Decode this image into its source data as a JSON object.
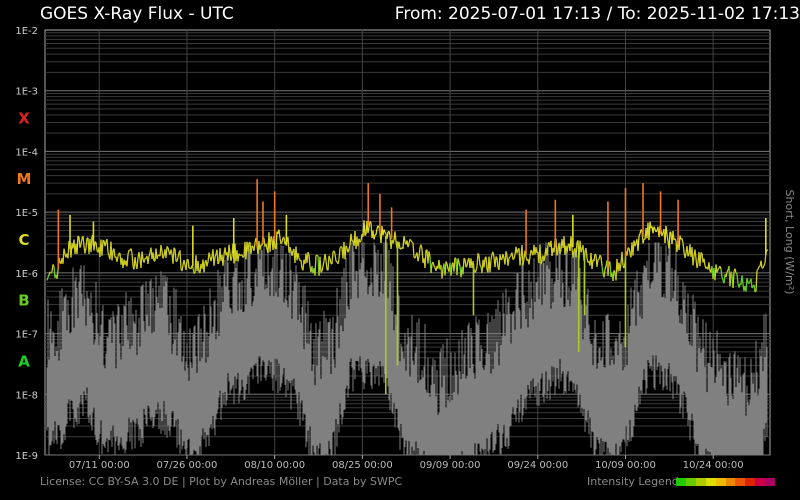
{
  "header": {
    "title": "GOES X-Ray Flux - UTC",
    "range": "From: 2025-07-01 17:13  /  To: 2025-11-02 17:13"
  },
  "footer": {
    "credits": "License: CC BY-SA 3.0 DE | Plot by Andreas Möller | Data by SWPC",
    "legend_label": "Intensity Legend",
    "legend_colors": [
      "#22cc00",
      "#66cc00",
      "#aacc00",
      "#dddd00",
      "#eebb00",
      "#ee8800",
      "#ee5500",
      "#dd2200",
      "#cc0044",
      "#aa0066"
    ]
  },
  "chart_data": {
    "type": "line",
    "title": "GOES X-Ray Flux - UTC",
    "ylabel": "Short, Long (W/m²)",
    "yscale": "log",
    "ylim": [
      1e-09,
      0.01
    ],
    "y_ticks": [
      "1E-9",
      "1E-8",
      "1E-7",
      "1E-6",
      "1E-5",
      "1E-4",
      "1E-3",
      "1E-2"
    ],
    "flare_classes": [
      {
        "label": "X",
        "color": "#dd2222",
        "level": 0.00035
      },
      {
        "label": "M",
        "color": "#ee7722",
        "level": 3.5e-05
      },
      {
        "label": "C",
        "color": "#dddd22",
        "level": 3.5e-06
      },
      {
        "label": "B",
        "color": "#66cc22",
        "level": 3.5e-07
      },
      {
        "label": "A",
        "color": "#22cc22",
        "level": 3.5e-08
      }
    ],
    "xlim": [
      "2025-07-01 17:13",
      "2025-11-02 17:13"
    ],
    "x_ticks": [
      "07/11 00:00",
      "07/26 00:00",
      "08/10 00:00",
      "08/25 00:00",
      "09/09 00:00",
      "09/24 00:00",
      "10/09 00:00",
      "10/24 00:00"
    ],
    "grid": true,
    "series": [
      {
        "name": "Long",
        "color": "colored by intensity",
        "x": [
          "07/01",
          "07/04",
          "07/06",
          "07/09",
          "07/12",
          "07/15",
          "07/18",
          "07/21",
          "07/24",
          "07/27",
          "07/30",
          "08/02",
          "08/05",
          "08/08",
          "08/11",
          "08/14",
          "08/17",
          "08/20",
          "08/23",
          "08/26",
          "08/29",
          "09/01",
          "09/04",
          "09/07",
          "09/10",
          "09/13",
          "09/16",
          "09/19",
          "09/22",
          "09/25",
          "09/28",
          "10/01",
          "10/04",
          "10/07",
          "10/10",
          "10/13",
          "10/16",
          "10/19",
          "10/22",
          "10/25",
          "10/28",
          "10/31",
          "11/02"
        ],
        "values": [
          8e-07,
          1.2e-06,
          2.5e-06,
          3e-06,
          2.5e-06,
          1.8e-06,
          1.6e-06,
          2e-06,
          1.8e-06,
          1.3e-06,
          1.6e-06,
          2e-06,
          2.2e-06,
          3e-06,
          3.5e-06,
          1.8e-06,
          1.3e-06,
          1.5e-06,
          3e-06,
          6e-06,
          4e-06,
          3e-06,
          2e-06,
          1.2e-06,
          1.2e-06,
          1.4e-06,
          1.5e-06,
          1.8e-06,
          2e-06,
          2e-06,
          3e-06,
          2.5e-06,
          1.5e-06,
          1e-06,
          2.5e-06,
          5e-06,
          4e-06,
          2.5e-06,
          1.5e-06,
          1e-06,
          8e-07,
          6e-07,
          2e-06
        ],
        "peaks": [
          {
            "x": "07/04",
            "value": 1.1e-05
          },
          {
            "x": "07/06",
            "value": 9e-06
          },
          {
            "x": "07/10",
            "value": 7e-06
          },
          {
            "x": "07/27",
            "value": 6e-06
          },
          {
            "x": "08/03",
            "value": 8e-06
          },
          {
            "x": "08/07",
            "value": 3.5e-05
          },
          {
            "x": "08/08",
            "value": 1.5e-05
          },
          {
            "x": "08/10",
            "value": 2.2e-05
          },
          {
            "x": "08/12",
            "value": 9e-06
          },
          {
            "x": "08/26",
            "value": 3e-05
          },
          {
            "x": "08/28",
            "value": 2e-05
          },
          {
            "x": "08/30",
            "value": 1.2e-05
          },
          {
            "x": "09/22",
            "value": 1.1e-05
          },
          {
            "x": "09/27",
            "value": 1.6e-05
          },
          {
            "x": "09/30",
            "value": 9e-06
          },
          {
            "x": "10/06",
            "value": 1.5e-05
          },
          {
            "x": "10/09",
            "value": 2.5e-05
          },
          {
            "x": "10/12",
            "value": 3e-05
          },
          {
            "x": "10/15",
            "value": 2.2e-05
          },
          {
            "x": "10/18",
            "value": 1.6e-05
          },
          {
            "x": "11/02",
            "value": 8e-06
          }
        ],
        "dips": [
          {
            "x": "08/29",
            "value": 1e-08
          },
          {
            "x": "08/31",
            "value": 3e-08
          },
          {
            "x": "09/13",
            "value": 2e-07
          },
          {
            "x": "10/01",
            "value": 5e-08
          },
          {
            "x": "10/02",
            "value": 2e-07
          },
          {
            "x": "10/09",
            "value": 6e-08
          }
        ]
      },
      {
        "name": "Short",
        "color": "#808080",
        "x": [
          "07/01",
          "07/04",
          "07/06",
          "07/09",
          "07/12",
          "07/15",
          "07/18",
          "07/21",
          "07/24",
          "07/27",
          "07/30",
          "08/02",
          "08/05",
          "08/08",
          "08/11",
          "08/14",
          "08/17",
          "08/20",
          "08/23",
          "08/26",
          "08/29",
          "09/01",
          "09/04",
          "09/07",
          "09/10",
          "09/13",
          "09/16",
          "09/19",
          "09/22",
          "09/25",
          "09/28",
          "10/01",
          "10/04",
          "10/07",
          "10/10",
          "10/13",
          "10/16",
          "10/19",
          "10/22",
          "10/25",
          "10/28",
          "10/31",
          "11/02"
        ],
        "values": [
          5e-09,
          8e-09,
          2e-08,
          3e-08,
          5e-09,
          8e-09,
          1e-08,
          2e-08,
          1e-08,
          3e-09,
          1e-08,
          5e-08,
          5e-08,
          1e-07,
          8e-08,
          3e-08,
          3e-09,
          5e-09,
          8e-08,
          1e-07,
          8e-08,
          5e-09,
          3e-09,
          1e-09,
          2e-09,
          3e-09,
          5e-09,
          1e-08,
          3e-08,
          5e-08,
          8e-08,
          3e-08,
          5e-09,
          3e-09,
          1e-08,
          1e-07,
          8e-08,
          3e-08,
          3e-09,
          2e-09,
          1e-09,
          1e-09,
          8e-09
        ]
      }
    ]
  }
}
